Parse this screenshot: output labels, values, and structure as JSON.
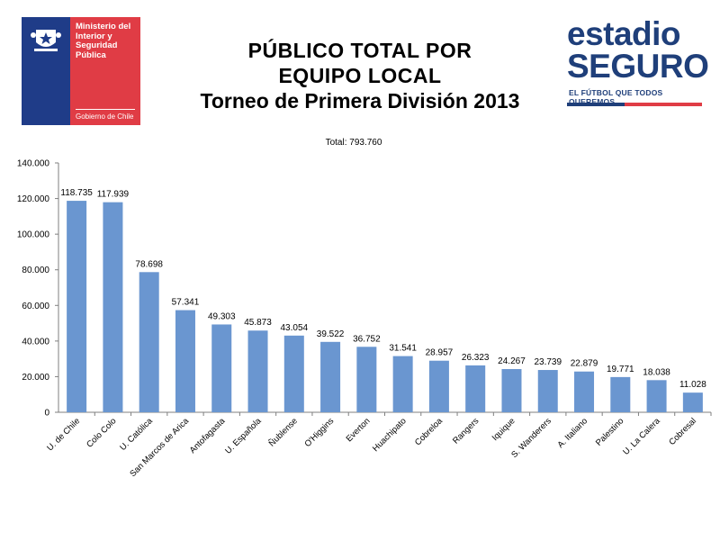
{
  "gov_logo": {
    "lines": [
      "Ministerio del",
      "Interior y",
      "Seguridad",
      "Pública"
    ],
    "subtitle": "Gobierno de Chile",
    "colors": {
      "blue": "#1f3c88",
      "red": "#e03c45"
    }
  },
  "title": {
    "line1": "PÚBLICO TOTAL POR",
    "line2": "EQUIPO LOCAL",
    "line3": "Torneo de Primera División 2013"
  },
  "brand_logo": {
    "line1": "estadio",
    "line2": "SEGURO",
    "tagline": "EL FÚTBOL QUE TODOS QUEREMOS"
  },
  "chart_data": {
    "type": "bar",
    "subtitle": "Total: 793.760",
    "categories": [
      "U. de Chile",
      "Colo Colo",
      "U. Católica",
      "San Marcos de Arica",
      "Antofagasta",
      "U. Española",
      "Ñublense",
      "O'Higgins",
      "Everton",
      "Huachipato",
      "Cobreloa",
      "Rangers",
      "Iquique",
      "S. Wanderers",
      "A. Italiano",
      "Palestino",
      "U. La Calera",
      "Cobresal"
    ],
    "values": [
      118735,
      117939,
      78698,
      57341,
      49303,
      45873,
      43054,
      39522,
      36752,
      31541,
      28957,
      26323,
      24267,
      23739,
      22879,
      19771,
      18038,
      11028
    ],
    "value_labels": [
      "118.735",
      "117.939",
      "78.698",
      "57.341",
      "49.303",
      "45.873",
      "43.054",
      "39.522",
      "36.752",
      "31.541",
      "28.957",
      "26.323",
      "24.267",
      "23.739",
      "22.879",
      "19.771",
      "18.038",
      "11.028"
    ],
    "yticks": [
      0,
      20000,
      40000,
      60000,
      80000,
      100000,
      120000,
      140000
    ],
    "ytick_labels": [
      "0",
      "20.000",
      "40.000",
      "60.000",
      "80.000",
      "100.000",
      "120.000",
      "140.000"
    ],
    "ylim": [
      0,
      140000
    ],
    "bar_color": "#6a96d0",
    "grid": false
  }
}
